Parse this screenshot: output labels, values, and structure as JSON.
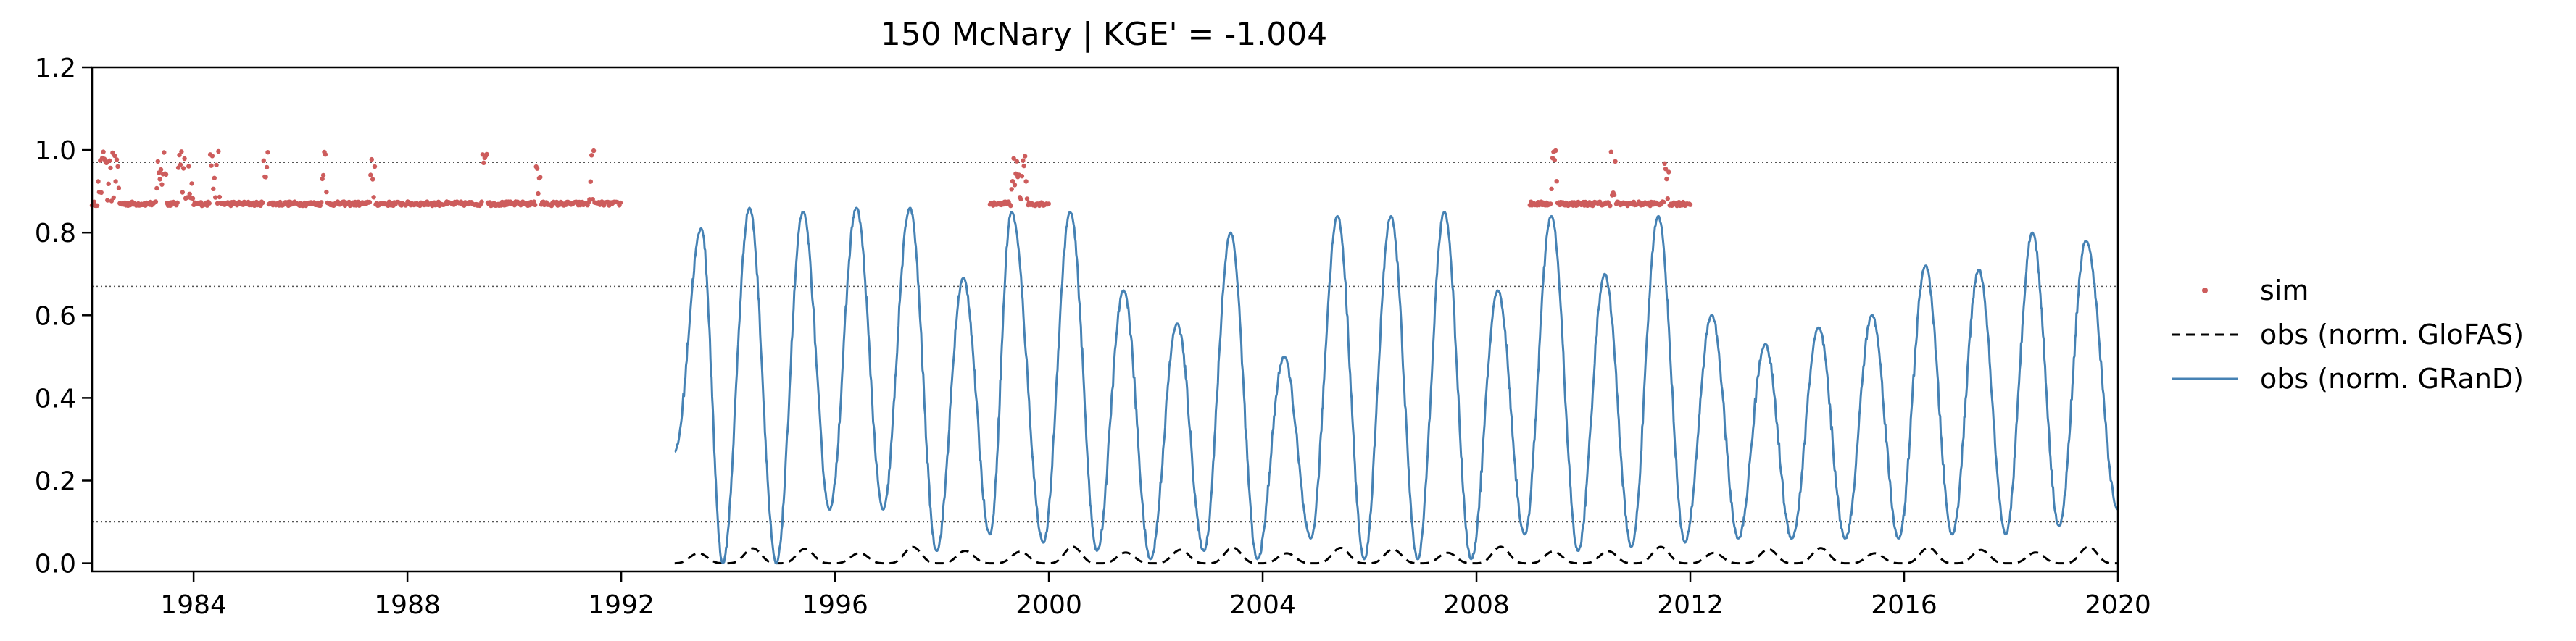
{
  "chart_data": {
    "type": "line",
    "title": "150  McNary | KGE' = -1.004",
    "xlabel": "",
    "ylabel": "",
    "xlim": [
      1982.1,
      2020.0
    ],
    "ylim": [
      -0.02,
      1.2
    ],
    "xticks": [
      1984,
      1988,
      1992,
      1996,
      2000,
      2004,
      2008,
      2012,
      2016,
      2020
    ],
    "xtick_labels": [
      "1984",
      "1988",
      "1992",
      "1996",
      "2000",
      "2004",
      "2008",
      "2012",
      "2016",
      "2020"
    ],
    "yticks": [
      0.0,
      0.2,
      0.4,
      0.6,
      0.8,
      1.0,
      1.2
    ],
    "ytick_labels": [
      "0.0",
      "0.2",
      "0.4",
      "0.6",
      "0.8",
      "1.0",
      "1.2"
    ],
    "reference_lines": [
      0.1,
      0.67,
      0.97
    ],
    "colors": {
      "sim": "#cd5c5c",
      "obs_glofas": "#000000",
      "obs_grand": "#4682b4",
      "ref_lines": "#555555"
    },
    "legend": {
      "location": "right-outside",
      "entries": [
        {
          "label": "sim",
          "style": "dots",
          "color": "#cd5c5c"
        },
        {
          "label": "obs (norm. GloFAS)",
          "style": "dashed",
          "color": "#000000"
        },
        {
          "label": "obs (norm. GRanD)",
          "style": "line",
          "color": "#4682b4"
        }
      ]
    },
    "series": [
      {
        "name": "sim",
        "kind": "dots",
        "segments": [
          {
            "start": 1982.1,
            "end": 1992.0,
            "base": 0.87
          },
          {
            "start": 1998.9,
            "end": 2000.0,
            "base": 0.87
          },
          {
            "start": 2009.0,
            "end": 2012.0,
            "base": 0.87
          }
        ],
        "full_episodes": [
          [
            1982.2,
            1982.6
          ],
          [
            1983.3,
            1983.5
          ],
          [
            1983.7,
            1984.0
          ],
          [
            1984.3,
            1984.5
          ],
          [
            1985.3,
            1985.4
          ],
          [
            1986.4,
            1986.5
          ],
          [
            1987.3,
            1987.4
          ],
          [
            1989.4,
            1989.5
          ],
          [
            1990.4,
            1990.5
          ],
          [
            1991.4,
            1991.5
          ],
          [
            1999.3,
            1999.6
          ],
          [
            2009.4,
            2009.5
          ],
          [
            2010.5,
            2010.6
          ],
          [
            2011.5,
            2011.6
          ]
        ],
        "peak": 1.0
      },
      {
        "name": "obs (norm. GRanD)",
        "kind": "line",
        "start": 1993.0,
        "end": 2020.0,
        "start_value": 0.27,
        "peaks": [
          [
            1993.5,
            0.81
          ],
          [
            1994.4,
            0.86
          ],
          [
            1995.4,
            0.85
          ],
          [
            1996.4,
            0.86
          ],
          [
            1997.4,
            0.86
          ],
          [
            1998.4,
            0.69
          ],
          [
            1999.3,
            0.85
          ],
          [
            2000.4,
            0.85
          ],
          [
            2001.4,
            0.66
          ],
          [
            2002.4,
            0.58
          ],
          [
            2003.4,
            0.8
          ],
          [
            2004.4,
            0.5
          ],
          [
            2005.4,
            0.84
          ],
          [
            2006.4,
            0.84
          ],
          [
            2007.4,
            0.85
          ],
          [
            2008.4,
            0.66
          ],
          [
            2009.4,
            0.84
          ],
          [
            2010.4,
            0.7
          ],
          [
            2011.4,
            0.84
          ],
          [
            2012.4,
            0.6
          ],
          [
            2013.4,
            0.53
          ],
          [
            2014.4,
            0.57
          ],
          [
            2015.4,
            0.6
          ],
          [
            2016.4,
            0.72
          ],
          [
            2017.4,
            0.71
          ],
          [
            2018.4,
            0.8
          ],
          [
            2019.4,
            0.78
          ]
        ],
        "troughs": [
          [
            1993.9,
            0.0
          ],
          [
            1994.9,
            0.0
          ],
          [
            1995.9,
            0.13
          ],
          [
            1996.9,
            0.13
          ],
          [
            1997.9,
            0.03
          ],
          [
            1998.9,
            0.07
          ],
          [
            1999.9,
            0.05
          ],
          [
            2000.9,
            0.03
          ],
          [
            2001.9,
            0.01
          ],
          [
            2002.9,
            0.03
          ],
          [
            2003.9,
            0.01
          ],
          [
            2004.9,
            0.06
          ],
          [
            2005.9,
            0.01
          ],
          [
            2006.9,
            0.01
          ],
          [
            2007.9,
            0.01
          ],
          [
            2008.9,
            0.07
          ],
          [
            2009.9,
            0.03
          ],
          [
            2010.9,
            0.04
          ],
          [
            2011.9,
            0.05
          ],
          [
            2012.9,
            0.06
          ],
          [
            2013.9,
            0.06
          ],
          [
            2014.9,
            0.06
          ],
          [
            2015.9,
            0.06
          ],
          [
            2016.9,
            0.07
          ],
          [
            2017.9,
            0.07
          ],
          [
            2018.9,
            0.09
          ]
        ],
        "end_value": 0.13
      },
      {
        "name": "obs (norm. GloFAS)",
        "kind": "dashed",
        "start": 1993.0,
        "end": 2020.0,
        "peak": 0.04,
        "trough": 0.0,
        "peak_phase": 0.45
      }
    ]
  }
}
